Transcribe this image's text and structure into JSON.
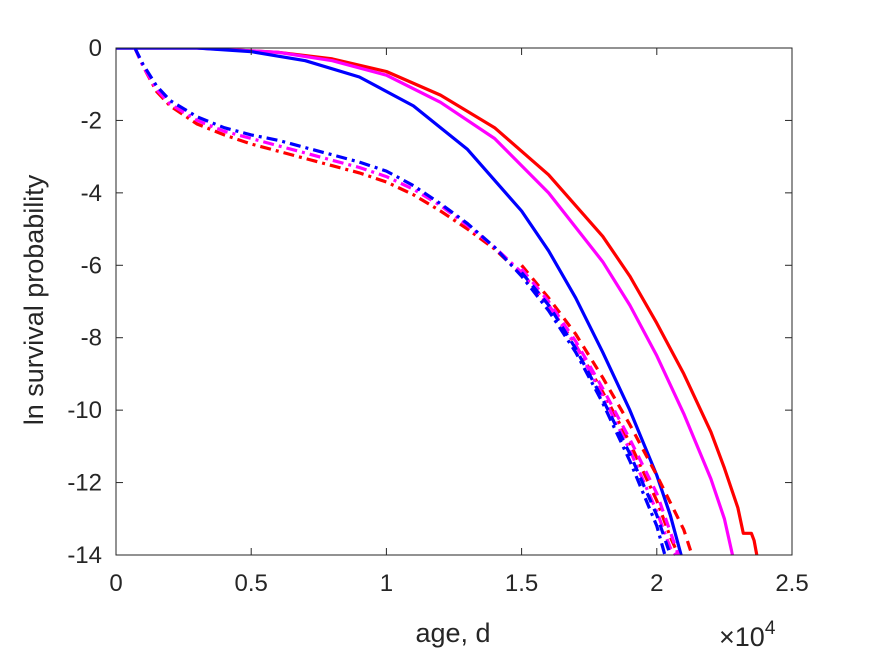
{
  "chart_data": {
    "type": "line",
    "title": "",
    "xlabel": "age, d",
    "ylabel": "ln survival probability",
    "x_exponent_label": {
      "base": "×10",
      "exp": "4"
    },
    "xlim": [
      0,
      2.5
    ],
    "ylim": [
      -14,
      0
    ],
    "x_ticks": [
      0,
      0.5,
      1,
      1.5,
      2,
      2.5
    ],
    "x_tick_labels": [
      "0",
      "0.5",
      "1",
      "1.5",
      "2",
      "2.5"
    ],
    "y_ticks": [
      0,
      -2,
      -4,
      -6,
      -8,
      -10,
      -12,
      -14
    ],
    "y_tick_labels": [
      "0",
      "-2",
      "-4",
      "-6",
      "-8",
      "-10",
      "-12",
      "-14"
    ],
    "grid": false,
    "legend": "none",
    "series": [
      {
        "color": "#ff0000",
        "style": "solid",
        "points": [
          [
            0,
            0
          ],
          [
            0.3,
            0
          ],
          [
            0.6,
            -0.12
          ],
          [
            0.8,
            -0.3
          ],
          [
            1.0,
            -0.65
          ],
          [
            1.2,
            -1.3
          ],
          [
            1.4,
            -2.2
          ],
          [
            1.6,
            -3.5
          ],
          [
            1.8,
            -5.2
          ],
          [
            1.9,
            -6.3
          ],
          [
            2.0,
            -7.6
          ],
          [
            2.1,
            -9.0
          ],
          [
            2.2,
            -10.6
          ],
          [
            2.25,
            -11.6
          ],
          [
            2.3,
            -12.7
          ],
          [
            2.32,
            -13.4
          ],
          [
            2.35,
            -13.4
          ],
          [
            2.36,
            -13.6
          ],
          [
            2.37,
            -14
          ]
        ]
      },
      {
        "color": "#ff00ff",
        "style": "solid",
        "points": [
          [
            0,
            0
          ],
          [
            0.3,
            0
          ],
          [
            0.6,
            -0.12
          ],
          [
            0.8,
            -0.35
          ],
          [
            1.0,
            -0.75
          ],
          [
            1.2,
            -1.5
          ],
          [
            1.4,
            -2.5
          ],
          [
            1.6,
            -4.0
          ],
          [
            1.8,
            -5.9
          ],
          [
            1.9,
            -7.1
          ],
          [
            2.0,
            -8.5
          ],
          [
            2.1,
            -10.1
          ],
          [
            2.2,
            -11.9
          ],
          [
            2.25,
            -13.0
          ],
          [
            2.28,
            -14
          ]
        ]
      },
      {
        "color": "#0000ff",
        "style": "solid",
        "points": [
          [
            0,
            0
          ],
          [
            0.3,
            0
          ],
          [
            0.5,
            -0.1
          ],
          [
            0.7,
            -0.35
          ],
          [
            0.9,
            -0.8
          ],
          [
            1.1,
            -1.6
          ],
          [
            1.3,
            -2.8
          ],
          [
            1.5,
            -4.5
          ],
          [
            1.6,
            -5.6
          ],
          [
            1.7,
            -6.9
          ],
          [
            1.8,
            -8.4
          ],
          [
            1.9,
            -10.0
          ],
          [
            2.0,
            -11.8
          ],
          [
            2.05,
            -12.9
          ],
          [
            2.09,
            -14
          ]
        ]
      },
      {
        "color": "#ff0000",
        "style": "dashdot",
        "points": [
          [
            0.07,
            0
          ],
          [
            0.1,
            -0.5
          ],
          [
            0.15,
            -1.2
          ],
          [
            0.2,
            -1.6
          ],
          [
            0.3,
            -2.1
          ],
          [
            0.4,
            -2.4
          ],
          [
            0.5,
            -2.65
          ],
          [
            0.6,
            -2.85
          ],
          [
            0.7,
            -3.05
          ],
          [
            0.8,
            -3.25
          ],
          [
            0.9,
            -3.45
          ],
          [
            1.0,
            -3.7
          ],
          [
            1.1,
            -4.05
          ],
          [
            1.2,
            -4.5
          ],
          [
            1.3,
            -5.0
          ],
          [
            1.4,
            -5.55
          ],
          [
            1.5,
            -6.25
          ],
          [
            1.6,
            -7.1
          ],
          [
            1.7,
            -8.2
          ],
          [
            1.8,
            -9.5
          ],
          [
            1.9,
            -10.9
          ],
          [
            2.0,
            -12.5
          ],
          [
            2.05,
            -13.5
          ],
          [
            2.08,
            -14
          ]
        ]
      },
      {
        "color": "#ff00ff",
        "style": "dashdot",
        "points": [
          [
            0.07,
            0
          ],
          [
            0.1,
            -0.5
          ],
          [
            0.15,
            -1.15
          ],
          [
            0.2,
            -1.55
          ],
          [
            0.3,
            -2.0
          ],
          [
            0.4,
            -2.3
          ],
          [
            0.5,
            -2.5
          ],
          [
            0.6,
            -2.7
          ],
          [
            0.7,
            -2.9
          ],
          [
            0.8,
            -3.1
          ],
          [
            0.9,
            -3.3
          ],
          [
            1.0,
            -3.55
          ],
          [
            1.1,
            -3.9
          ],
          [
            1.2,
            -4.35
          ],
          [
            1.3,
            -4.9
          ],
          [
            1.4,
            -5.5
          ],
          [
            1.5,
            -6.2
          ],
          [
            1.6,
            -7.1
          ],
          [
            1.7,
            -8.2
          ],
          [
            1.8,
            -9.6
          ],
          [
            1.9,
            -11.1
          ],
          [
            2.0,
            -12.8
          ],
          [
            2.05,
            -13.8
          ],
          [
            2.07,
            -14
          ]
        ]
      },
      {
        "color": "#0000ff",
        "style": "dashdot",
        "points": [
          [
            0.07,
            0
          ],
          [
            0.1,
            -0.45
          ],
          [
            0.15,
            -1.05
          ],
          [
            0.2,
            -1.45
          ],
          [
            0.3,
            -1.9
          ],
          [
            0.4,
            -2.2
          ],
          [
            0.5,
            -2.4
          ],
          [
            0.6,
            -2.55
          ],
          [
            0.7,
            -2.75
          ],
          [
            0.8,
            -2.95
          ],
          [
            0.9,
            -3.15
          ],
          [
            1.0,
            -3.4
          ],
          [
            1.1,
            -3.8
          ],
          [
            1.2,
            -4.3
          ],
          [
            1.3,
            -4.85
          ],
          [
            1.4,
            -5.5
          ],
          [
            1.5,
            -6.3
          ],
          [
            1.6,
            -7.25
          ],
          [
            1.7,
            -8.4
          ],
          [
            1.8,
            -9.8
          ],
          [
            1.9,
            -11.4
          ],
          [
            2.0,
            -13.2
          ],
          [
            2.03,
            -14
          ]
        ]
      },
      {
        "color": "#ff0000",
        "style": "dashed",
        "points": [
          [
            1.5,
            -6.0
          ],
          [
            1.6,
            -6.9
          ],
          [
            1.7,
            -7.9
          ],
          [
            1.8,
            -9.1
          ],
          [
            1.9,
            -10.4
          ],
          [
            2.0,
            -11.8
          ],
          [
            2.1,
            -13.3
          ],
          [
            2.13,
            -14
          ]
        ]
      },
      {
        "color": "#ff00ff",
        "style": "dashed",
        "points": [
          [
            1.5,
            -6.1
          ],
          [
            1.6,
            -7.0
          ],
          [
            1.7,
            -8.1
          ],
          [
            1.8,
            -9.4
          ],
          [
            1.9,
            -10.8
          ],
          [
            2.0,
            -12.3
          ],
          [
            2.08,
            -14
          ]
        ]
      },
      {
        "color": "#0000ff",
        "style": "dashed",
        "points": [
          [
            1.5,
            -6.2
          ],
          [
            1.6,
            -7.1
          ],
          [
            1.7,
            -8.3
          ],
          [
            1.8,
            -9.7
          ],
          [
            1.9,
            -11.2
          ],
          [
            2.0,
            -12.9
          ],
          [
            2.05,
            -14
          ]
        ]
      }
    ]
  }
}
